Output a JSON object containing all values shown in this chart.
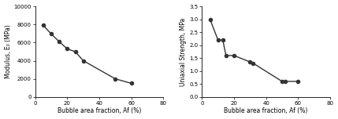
{
  "left": {
    "x": [
      5,
      10,
      15,
      20,
      25,
      30,
      50,
      60
    ],
    "y": [
      7900,
      6950,
      6100,
      5300,
      5000,
      4000,
      2000,
      1500
    ],
    "xlabel": "Bubble area fraction, Af (%)",
    "ylabel": "Modulus, E₀ (MPa)",
    "xlim": [
      0,
      80
    ],
    "ylim": [
      0,
      10000
    ],
    "xticks": [
      0,
      20,
      40,
      60,
      80
    ],
    "yticks": [
      0,
      2000,
      4000,
      6000,
      8000,
      10000
    ]
  },
  "right": {
    "x": [
      5,
      10,
      13,
      15,
      20,
      30,
      32,
      50,
      52,
      60
    ],
    "y": [
      3.0,
      2.2,
      2.2,
      1.6,
      1.6,
      1.35,
      1.3,
      0.6,
      0.6,
      0.6
    ],
    "xlabel": "Bubble area fraction, Af (%)",
    "ylabel": "Uniaxial Strength, MPa",
    "xlim": [
      0,
      80
    ],
    "ylim": [
      0,
      3.5
    ],
    "xticks": [
      0,
      20,
      40,
      60,
      80
    ],
    "yticks": [
      0,
      0.5,
      1.0,
      1.5,
      2.0,
      2.5,
      3.0,
      3.5
    ]
  },
  "line_color": "#333333",
  "marker": "o",
  "markersize": 3.0,
  "linewidth": 1.0,
  "font_size": 5.5,
  "tick_font_size": 5.0,
  "fig_width": 4.29,
  "fig_height": 1.52,
  "dpi": 100
}
